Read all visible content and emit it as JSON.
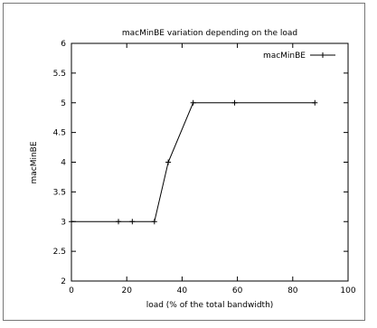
{
  "chart_data": {
    "type": "line",
    "title": "macMinBE variation depending on the load",
    "xlabel": "load (% of the total bandwidth)",
    "ylabel": "macMinBE",
    "xlim": [
      0,
      100
    ],
    "ylim": [
      2,
      6
    ],
    "x_ticks": [
      0,
      20,
      40,
      60,
      80,
      100
    ],
    "y_ticks": [
      2,
      2.5,
      3,
      3.5,
      4,
      4.5,
      5,
      5.5,
      6
    ],
    "grid": false,
    "legend_position": "top-right",
    "series": [
      {
        "name": "macMinBE",
        "color": "#000000",
        "marker": "plus",
        "x": [
          0,
          17,
          22,
          30,
          35,
          44,
          59,
          88
        ],
        "y": [
          3,
          3,
          3,
          3,
          4,
          5,
          5,
          5
        ]
      }
    ]
  }
}
